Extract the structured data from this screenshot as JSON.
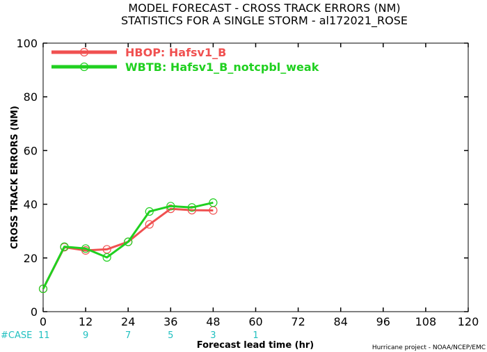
{
  "chart_data": {
    "type": "line",
    "title": "MODEL FORECAST - CROSS TRACK ERRORS (NM)",
    "subtitle": "STATISTICS FOR A SINGLE STORM - al172021_ROSE",
    "xlabel": "Forecast lead time (hr)",
    "ylabel": "CROSS TRACK ERRORS (NM)",
    "xlim": [
      0,
      120
    ],
    "ylim": [
      0,
      100
    ],
    "xticks": [
      0,
      12,
      24,
      36,
      48,
      60,
      72,
      84,
      96,
      108,
      120
    ],
    "yticks": [
      0,
      20,
      40,
      60,
      80,
      100
    ],
    "grid": false,
    "legend_position": "top-left",
    "series": [
      {
        "name": "HBOP: Hafsv1_B",
        "color": "#f05050",
        "x": [
          0,
          6,
          12,
          18,
          24,
          30,
          36,
          42,
          48
        ],
        "y": [
          8.5,
          24,
          22.8,
          23.2,
          26,
          32.5,
          38.3,
          37.8,
          37.7
        ]
      },
      {
        "name": "WBTB: Hafsv1_B_notcpbl_weak",
        "color": "#20d020",
        "x": [
          0,
          6,
          12,
          18,
          24,
          30,
          36,
          42,
          48
        ],
        "y": [
          8.5,
          24.2,
          23.5,
          20.2,
          26,
          37.3,
          39.3,
          38.8,
          40.6
        ]
      }
    ],
    "cases": {
      "label": "#CASE",
      "color": "#20c0c0",
      "x": [
        0,
        12,
        24,
        36,
        48,
        60
      ],
      "values": [
        "11",
        "9",
        "7",
        "5",
        "3",
        "1"
      ]
    },
    "footer": "Hurricane project - NOAA/NCEP/EMC"
  }
}
